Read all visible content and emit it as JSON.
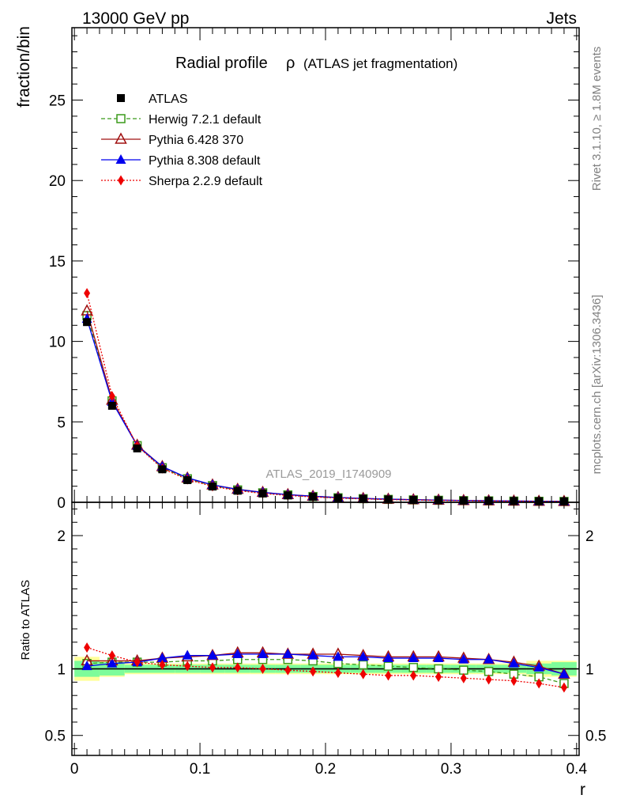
{
  "header": {
    "left": "13000 GeV pp",
    "right": "Jets"
  },
  "side_text": {
    "rivet": "Rivet 3.1.10, ≥ 1.8M events",
    "mcplots": "mcplots.cern.ch [arXiv:1306.3436]"
  },
  "colors": {
    "atlas": "#000000",
    "herwig": "#3a9a1a",
    "pythia6": "#a01010",
    "pythia8": "#0000ee",
    "sherpa": "#ee0000",
    "band_inner": "#7dfc9a",
    "band_outer": "#ffff99"
  },
  "chart_data": [
    {
      "type": "scatter",
      "title": "Radial profile",
      "title_symbol": "ρ",
      "subtitle": "(ATLAS jet fragmentation)",
      "watermark": "ATLAS_2019_I1740909",
      "ylabel": "fraction/bin",
      "xlim": [
        -0.002,
        0.402
      ],
      "ylim": [
        0,
        29.5
      ],
      "yticks": [
        0,
        5,
        10,
        15,
        20,
        25
      ],
      "x": [
        0.01,
        0.03,
        0.05,
        0.07,
        0.09,
        0.11,
        0.13,
        0.15,
        0.17,
        0.19,
        0.21,
        0.23,
        0.25,
        0.27,
        0.29,
        0.31,
        0.33,
        0.35,
        0.37,
        0.39
      ],
      "series": [
        {
          "name": "ATLAS",
          "key": "atlas",
          "values": [
            11.2,
            6.0,
            3.35,
            2.05,
            1.38,
            0.98,
            0.72,
            0.55,
            0.43,
            0.34,
            0.27,
            0.22,
            0.18,
            0.15,
            0.125,
            0.105,
            0.09,
            0.077,
            0.066,
            0.057
          ]
        },
        {
          "name": "Herwig 7.2.1 default",
          "key": "herwig",
          "values": [
            11.6,
            6.3,
            3.52,
            2.15,
            1.46,
            1.04,
            0.77,
            0.59,
            0.46,
            0.36,
            0.28,
            0.225,
            0.18,
            0.15,
            0.125,
            0.104,
            0.088,
            0.074,
            0.062,
            0.051
          ]
        },
        {
          "name": "Pythia 6.428 370",
          "key": "pythia6",
          "values": [
            11.9,
            6.35,
            3.55,
            2.22,
            1.51,
            1.08,
            0.81,
            0.62,
            0.48,
            0.38,
            0.3,
            0.24,
            0.195,
            0.163,
            0.136,
            0.113,
            0.097,
            0.081,
            0.067,
            0.055
          ]
        },
        {
          "name": "Pythia 8.308 default",
          "key": "pythia8",
          "values": [
            11.4,
            6.25,
            3.52,
            2.22,
            1.52,
            1.08,
            0.8,
            0.615,
            0.475,
            0.372,
            0.294,
            0.236,
            0.193,
            0.161,
            0.134,
            0.112,
            0.096,
            0.08,
            0.066,
            0.055
          ]
        },
        {
          "name": "Sherpa 2.2.9 default",
          "key": "sherpa",
          "values": [
            13.0,
            6.6,
            3.5,
            2.1,
            1.42,
            0.99,
            0.73,
            0.55,
            0.425,
            0.333,
            0.262,
            0.21,
            0.17,
            0.142,
            0.118,
            0.098,
            0.083,
            0.07,
            0.059,
            0.049
          ]
        }
      ]
    },
    {
      "type": "scatter",
      "ylabel": "Ratio to ATLAS",
      "xlabel": "r",
      "xlim": [
        -0.002,
        0.402
      ],
      "ylim": [
        0.35,
        2.25
      ],
      "yticks": [
        0.5,
        1,
        2
      ],
      "ytick_labels": [
        "0.5",
        "1",
        "2"
      ],
      "xticks": [
        0,
        0.1,
        0.2,
        0.3,
        0.4
      ],
      "xtick_labels": [
        "0",
        "0.1",
        "0.2",
        "0.3",
        "0.4"
      ],
      "x": [
        0.01,
        0.03,
        0.05,
        0.07,
        0.09,
        0.11,
        0.13,
        0.15,
        0.17,
        0.19,
        0.21,
        0.23,
        0.25,
        0.27,
        0.29,
        0.31,
        0.33,
        0.35,
        0.37,
        0.39
      ],
      "band_inner": [
        0.06,
        0.05,
        0.03,
        0.03,
        0.03,
        0.03,
        0.03,
        0.03,
        0.03,
        0.03,
        0.03,
        0.03,
        0.03,
        0.03,
        0.03,
        0.03,
        0.03,
        0.03,
        0.04,
        0.05
      ],
      "band_outer": [
        0.09,
        0.06,
        0.04,
        0.04,
        0.04,
        0.04,
        0.04,
        0.04,
        0.04,
        0.04,
        0.04,
        0.04,
        0.04,
        0.04,
        0.04,
        0.04,
        0.04,
        0.04,
        0.06,
        0.06
      ],
      "series": [
        {
          "name": "Herwig 7.2.1 default",
          "key": "herwig",
          "values": [
            1.04,
            1.05,
            1.05,
            1.05,
            1.06,
            1.06,
            1.07,
            1.07,
            1.07,
            1.06,
            1.04,
            1.03,
            1.02,
            1.01,
            1.0,
            0.99,
            0.98,
            0.96,
            0.94,
            0.89
          ]
        },
        {
          "name": "Pythia 6.428 370",
          "key": "pythia6",
          "values": [
            1.06,
            1.06,
            1.06,
            1.08,
            1.09,
            1.1,
            1.12,
            1.12,
            1.11,
            1.11,
            1.11,
            1.1,
            1.09,
            1.09,
            1.09,
            1.08,
            1.07,
            1.05,
            1.02,
            0.96
          ]
        },
        {
          "name": "Pythia 8.308 default",
          "key": "pythia8",
          "values": [
            1.02,
            1.04,
            1.05,
            1.08,
            1.1,
            1.1,
            1.11,
            1.11,
            1.11,
            1.1,
            1.09,
            1.09,
            1.08,
            1.08,
            1.08,
            1.07,
            1.07,
            1.04,
            1.01,
            0.96
          ]
        },
        {
          "name": "Sherpa 2.2.9 default",
          "key": "sherpa",
          "values": [
            1.16,
            1.1,
            1.05,
            1.03,
            1.02,
            1.01,
            1.01,
            1.0,
            0.99,
            0.98,
            0.97,
            0.96,
            0.95,
            0.95,
            0.94,
            0.93,
            0.92,
            0.91,
            0.89,
            0.86
          ]
        }
      ]
    }
  ]
}
